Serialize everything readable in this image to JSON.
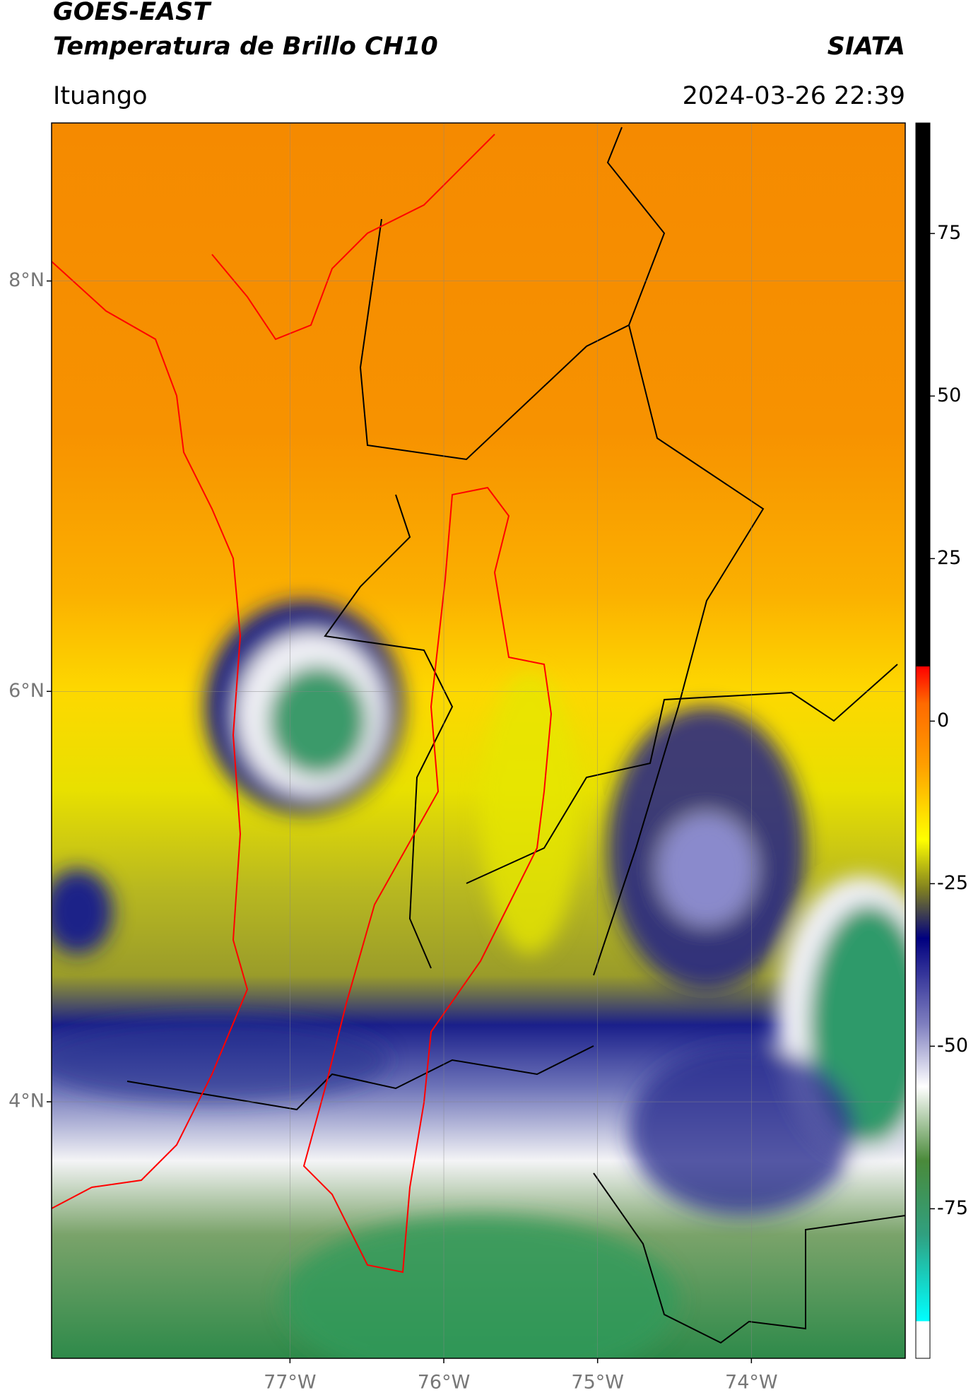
{
  "header": {
    "title": "GOES-EAST",
    "subtitle": "Temperatura de Brillo CH10",
    "credit": "SIATA",
    "region": "Ituango",
    "datetime": "2024-03-26 22:39"
  },
  "map": {
    "lon_range": [
      -78.55,
      -73.0
    ],
    "lat_range": [
      2.75,
      8.77
    ],
    "lat_ticks": [
      {
        "value": 4,
        "label": "4°N"
      },
      {
        "value": 6,
        "label": "6°N"
      },
      {
        "value": 8,
        "label": "8°N"
      }
    ],
    "lon_ticks": [
      {
        "value": -77,
        "label": "77°W"
      },
      {
        "value": -76,
        "label": "76°W"
      },
      {
        "value": -75,
        "label": "75°W"
      },
      {
        "value": -74,
        "label": "74°W"
      }
    ]
  },
  "colorbar": {
    "range": [
      -98,
      92
    ],
    "ticks": [
      75,
      50,
      25,
      0,
      -25,
      -50,
      -75
    ]
  }
}
